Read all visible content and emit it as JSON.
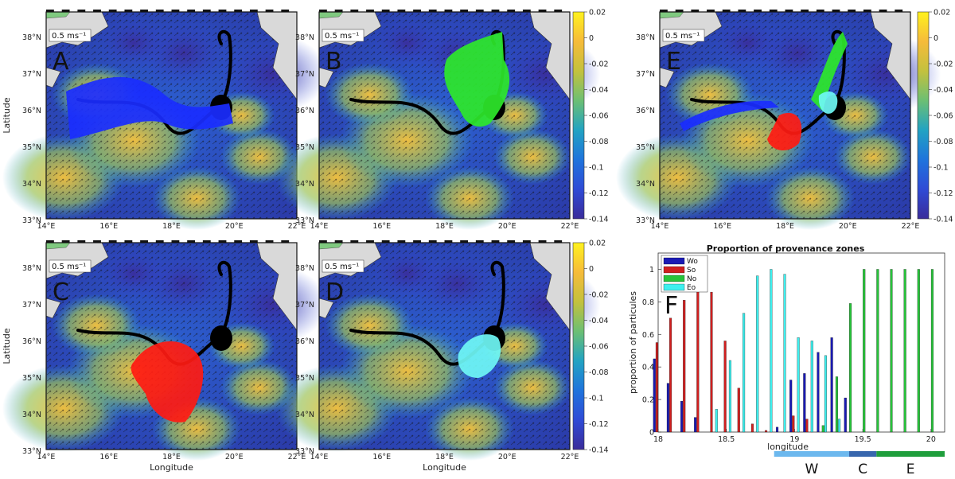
{
  "maps": {
    "lon_ticks": [
      "14°E",
      "16°E",
      "18°E",
      "20°E",
      "22°E"
    ],
    "lat_ticks": [
      "38°N",
      "37°N",
      "36°N",
      "35°N",
      "34°N",
      "33°N"
    ],
    "xlabel": "Longitude",
    "ylabel": "Latitude",
    "scale_label": "0.5 ms⁻¹",
    "panels": [
      {
        "letter": "A",
        "color": "#1a2cff"
      },
      {
        "letter": "B",
        "color": "#2ee82a"
      },
      {
        "letter": "C",
        "color": "#ff1a12"
      },
      {
        "letter": "D",
        "color": "#6ff7f5"
      },
      {
        "letter": "E",
        "color": "#1a2cff"
      }
    ],
    "colorbar_ticks": [
      "0.02",
      "0",
      "-0.02",
      "-0.04",
      "-0.06",
      "-0.08",
      "-0.1",
      "-0.12",
      "-0.14"
    ],
    "colorbar_colors": [
      "#fff21e",
      "#f6bb3a",
      "#c3c13e",
      "#6cbf74",
      "#22a3c2",
      "#1f74dc",
      "#2f4bd6",
      "#3a2c9a"
    ]
  },
  "chart_data": {
    "type": "bar",
    "title": "Proportion of provenance zones",
    "xlabel": "longitude",
    "ylabel": "proportion of particules",
    "xlim": [
      18,
      20.1
    ],
    "ylim": [
      0,
      1.1
    ],
    "x_ticks": [
      "18",
      "18.5",
      "19",
      "19.5",
      "20"
    ],
    "y_ticks": [
      "0",
      "0.2",
      "0.4",
      "0.6",
      "0.8",
      "1"
    ],
    "letter": "F",
    "legend": [
      {
        "name": "Wo",
        "color": "#1a1ab4"
      },
      {
        "name": "So",
        "color": "#d01f1f"
      },
      {
        "name": "No",
        "color": "#27c43a"
      },
      {
        "name": "Eo",
        "color": "#3df0ef"
      }
    ],
    "bins": [
      {
        "x": 18.0,
        "values": [
          0.45,
          0.55,
          0,
          0
        ]
      },
      {
        "x": 18.1,
        "values": [
          0.3,
          0.7,
          0,
          0
        ]
      },
      {
        "x": 18.2,
        "values": [
          0.19,
          0.81,
          0,
          0
        ]
      },
      {
        "x": 18.3,
        "values": [
          0.09,
          0.91,
          0,
          0
        ]
      },
      {
        "x": 18.4,
        "values": [
          0,
          0.86,
          0,
          0.14
        ]
      },
      {
        "x": 18.5,
        "values": [
          0,
          0.56,
          0,
          0.44
        ]
      },
      {
        "x": 18.6,
        "values": [
          0,
          0.27,
          0,
          0.73
        ]
      },
      {
        "x": 18.7,
        "values": [
          0,
          0.05,
          0,
          0.96
        ]
      },
      {
        "x": 18.8,
        "values": [
          0,
          0.01,
          0,
          1.0
        ]
      },
      {
        "x": 18.9,
        "values": [
          0.03,
          0,
          0,
          0.97
        ]
      },
      {
        "x": 19.0,
        "values": [
          0.32,
          0.1,
          0,
          0.58
        ]
      },
      {
        "x": 19.1,
        "values": [
          0.36,
          0.08,
          0,
          0.56
        ]
      },
      {
        "x": 19.2,
        "values": [
          0.49,
          0,
          0.04,
          0.47
        ]
      },
      {
        "x": 19.3,
        "values": [
          0.58,
          0,
          0.34,
          0.08
        ]
      },
      {
        "x": 19.4,
        "values": [
          0.21,
          0,
          0.79,
          0
        ]
      },
      {
        "x": 19.5,
        "values": [
          0,
          0,
          1,
          0
        ]
      },
      {
        "x": 19.6,
        "values": [
          0,
          0,
          1,
          0
        ]
      },
      {
        "x": 19.7,
        "values": [
          0,
          0,
          1,
          0
        ]
      },
      {
        "x": 19.8,
        "values": [
          0,
          0,
          1,
          0
        ]
      },
      {
        "x": 19.9,
        "values": [
          0,
          0,
          1,
          0
        ]
      },
      {
        "x": 20.0,
        "values": [
          0,
          0,
          1,
          0
        ]
      }
    ],
    "zones": [
      {
        "label": "W",
        "color": "#6cb8ee",
        "from": 18.85,
        "to": 19.4
      },
      {
        "label": "C",
        "color": "#3766ad",
        "from": 19.4,
        "to": 19.6
      },
      {
        "label": "E",
        "color": "#1f9e3c",
        "from": 19.6,
        "to": 20.1
      }
    ]
  }
}
